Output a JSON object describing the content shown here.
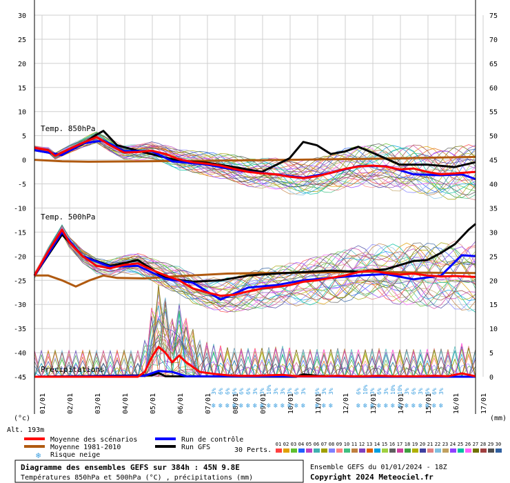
{
  "chart_data": {
    "type": "line",
    "y_left": {
      "min": -45,
      "max": 30,
      "ticks": [
        30,
        25,
        20,
        15,
        10,
        5,
        0,
        -5,
        -10,
        -15,
        -20,
        -25,
        -30,
        -35,
        -40,
        -45
      ],
      "unit_label": "(°c)"
    },
    "y_right": {
      "min": 0,
      "max": 75,
      "ticks": [
        75,
        70,
        65,
        60,
        55,
        50,
        45,
        40,
        35,
        30,
        25,
        20,
        15,
        10,
        5,
        0
      ],
      "unit_label": "(mm)"
    },
    "x_dates": [
      "01/01",
      "02/01",
      "03/01",
      "04/01",
      "05/01",
      "06/01",
      "07/01",
      "08/01",
      "09/01",
      "10/01",
      "11/01",
      "12/01",
      "13/01",
      "14/01",
      "15/01",
      "16/01",
      "17/01"
    ],
    "x_range_hours": [
      0,
      384
    ],
    "grid": true,
    "section_labels": {
      "t850": "Temp. 850hPa",
      "t500": "Temp. 500hPa",
      "precip": "Précipitations"
    },
    "altitude": "Alt. 193m",
    "series": [
      {
        "name": "Moyenne des scénarios",
        "color": "#ff0000",
        "t850": [
          [
            0,
            2.5
          ],
          [
            12,
            2
          ],
          [
            18,
            0.8
          ],
          [
            30,
            2.2
          ],
          [
            42,
            3.5
          ],
          [
            54,
            4.7
          ],
          [
            66,
            3
          ],
          [
            78,
            1.5
          ],
          [
            90,
            1.6
          ],
          [
            102,
            1.9
          ],
          [
            114,
            1.2
          ],
          [
            126,
            0.1
          ],
          [
            138,
            -0.5
          ],
          [
            150,
            -0.8
          ],
          [
            162,
            -1.2
          ],
          [
            174,
            -1.9
          ],
          [
            186,
            -2.5
          ],
          [
            198,
            -2.8
          ],
          [
            210,
            -3
          ],
          [
            222,
            -3.5
          ],
          [
            234,
            -3.8
          ],
          [
            246,
            -3.4
          ],
          [
            258,
            -2.7
          ],
          [
            270,
            -1.9
          ],
          [
            282,
            -1.4
          ],
          [
            294,
            -1.2
          ],
          [
            306,
            -1.4
          ],
          [
            318,
            -2
          ],
          [
            330,
            -1.8
          ],
          [
            342,
            -2.5
          ],
          [
            354,
            -3
          ],
          [
            366,
            -2.8
          ],
          [
            384,
            -2.5
          ]
        ],
        "t500": [
          [
            0,
            -24
          ],
          [
            12,
            -19
          ],
          [
            24,
            -14.5
          ],
          [
            30,
            -17
          ],
          [
            42,
            -20
          ],
          [
            54,
            -22
          ],
          [
            66,
            -22.5
          ],
          [
            78,
            -21.8
          ],
          [
            90,
            -21.5
          ],
          [
            102,
            -22.8
          ],
          [
            114,
            -24
          ],
          [
            126,
            -25
          ],
          [
            138,
            -26.7
          ],
          [
            150,
            -27.5
          ],
          [
            162,
            -28.2
          ],
          [
            174,
            -28
          ],
          [
            186,
            -27.3
          ],
          [
            198,
            -26.7
          ],
          [
            210,
            -26.4
          ],
          [
            222,
            -26
          ],
          [
            234,
            -25.3
          ],
          [
            246,
            -25
          ],
          [
            258,
            -24.5
          ],
          [
            270,
            -24
          ],
          [
            282,
            -23.3
          ],
          [
            294,
            -23
          ],
          [
            306,
            -23.5
          ],
          [
            318,
            -23.8
          ],
          [
            330,
            -23.6
          ],
          [
            342,
            -24
          ],
          [
            354,
            -24.2
          ],
          [
            366,
            -24.1
          ],
          [
            384,
            -24.3
          ]
        ],
        "precip_mm": [
          [
            0,
            0
          ],
          [
            90,
            0
          ],
          [
            96,
            1
          ],
          [
            102,
            4
          ],
          [
            108,
            6.2
          ],
          [
            114,
            5
          ],
          [
            120,
            3
          ],
          [
            126,
            4.4
          ],
          [
            132,
            3
          ],
          [
            138,
            2
          ],
          [
            144,
            1
          ],
          [
            156,
            0.6
          ],
          [
            168,
            0.3
          ],
          [
            180,
            0.2
          ],
          [
            192,
            0.2
          ],
          [
            204,
            0.3
          ],
          [
            216,
            0.4
          ],
          [
            228,
            0.1
          ],
          [
            240,
            0.1
          ],
          [
            252,
            0.1
          ],
          [
            264,
            0.2
          ],
          [
            276,
            0.1
          ],
          [
            288,
            0.1
          ],
          [
            300,
            0.2
          ],
          [
            312,
            0.1
          ],
          [
            324,
            0.1
          ],
          [
            336,
            0.1
          ],
          [
            348,
            0.2
          ],
          [
            360,
            0.1
          ],
          [
            372,
            0.7
          ],
          [
            384,
            0.1
          ]
        ]
      },
      {
        "name": "Moyenne 1981-2010",
        "color": "#b05a10",
        "t850": [
          [
            0,
            0
          ],
          [
            24,
            -0.3
          ],
          [
            48,
            -0.4
          ],
          [
            96,
            -0.3
          ],
          [
            192,
            -0.1
          ],
          [
            288,
            0.2
          ],
          [
            384,
            0.6
          ]
        ],
        "t500": [
          [
            0,
            -24
          ],
          [
            12,
            -24
          ],
          [
            24,
            -25
          ],
          [
            36,
            -26.3
          ],
          [
            48,
            -25
          ],
          [
            60,
            -24
          ],
          [
            72,
            -24.5
          ],
          [
            96,
            -24.6
          ],
          [
            120,
            -24.2
          ],
          [
            168,
            -23.6
          ],
          [
            192,
            -23.5
          ],
          [
            240,
            -23.4
          ],
          [
            288,
            -23.2
          ],
          [
            336,
            -23.4
          ],
          [
            384,
            -23.5
          ]
        ]
      },
      {
        "name": "Run de contrôle",
        "color": "#0000ff",
        "t850": [
          [
            0,
            2
          ],
          [
            24,
            1
          ],
          [
            42,
            3.4
          ],
          [
            60,
            4
          ],
          [
            78,
            1.8
          ],
          [
            102,
            1.8
          ],
          [
            120,
            -0.3
          ],
          [
            150,
            -1
          ],
          [
            180,
            -2.3
          ],
          [
            210,
            -3
          ],
          [
            234,
            -3.7
          ],
          [
            258,
            -2.7
          ],
          [
            282,
            -1.3
          ],
          [
            306,
            -1.3
          ],
          [
            330,
            -3
          ],
          [
            354,
            -3.2
          ],
          [
            372,
            -3
          ],
          [
            384,
            -4
          ]
        ],
        "t500": [
          [
            0,
            -24
          ],
          [
            24,
            -15
          ],
          [
            42,
            -20
          ],
          [
            66,
            -22.2
          ],
          [
            90,
            -22
          ],
          [
            114,
            -24.7
          ],
          [
            138,
            -25.5
          ],
          [
            162,
            -29
          ],
          [
            186,
            -26.5
          ],
          [
            210,
            -26
          ],
          [
            234,
            -25
          ],
          [
            258,
            -24.5
          ],
          [
            282,
            -24
          ],
          [
            306,
            -23.7
          ],
          [
            330,
            -24.8
          ],
          [
            354,
            -24
          ],
          [
            372,
            -19.8
          ],
          [
            384,
            -20
          ]
        ],
        "precip_mm": [
          [
            0,
            0
          ],
          [
            96,
            0.2
          ],
          [
            108,
            1.2
          ],
          [
            120,
            1
          ],
          [
            132,
            0.1
          ],
          [
            384,
            0
          ]
        ]
      },
      {
        "name": "Run GFS",
        "color": "#000000",
        "t850": [
          [
            0,
            2
          ],
          [
            24,
            1
          ],
          [
            42,
            3.3
          ],
          [
            54,
            5.2
          ],
          [
            60,
            6
          ],
          [
            72,
            3
          ],
          [
            96,
            1.5
          ],
          [
            126,
            -0.2
          ],
          [
            150,
            -0.6
          ],
          [
            174,
            -1.5
          ],
          [
            198,
            -2.5
          ],
          [
            222,
            0.3
          ],
          [
            234,
            3.7
          ],
          [
            246,
            3
          ],
          [
            258,
            1.2
          ],
          [
            270,
            1.7
          ],
          [
            282,
            2.7
          ],
          [
            294,
            1.5
          ],
          [
            318,
            -1
          ],
          [
            342,
            -1
          ],
          [
            366,
            -1.5
          ],
          [
            384,
            -0.5
          ]
        ],
        "t500": [
          [
            0,
            -24
          ],
          [
            24,
            -15.5
          ],
          [
            42,
            -20
          ],
          [
            66,
            -22
          ],
          [
            90,
            -20.8
          ],
          [
            114,
            -24.5
          ],
          [
            138,
            -25.3
          ],
          [
            162,
            -25
          ],
          [
            186,
            -24
          ],
          [
            210,
            -23.6
          ],
          [
            234,
            -23.3
          ],
          [
            258,
            -23
          ],
          [
            282,
            -23.2
          ],
          [
            306,
            -22.7
          ],
          [
            330,
            -21
          ],
          [
            342,
            -20.8
          ],
          [
            354,
            -19.3
          ],
          [
            366,
            -17.5
          ],
          [
            378,
            -14.5
          ],
          [
            384,
            -13.3
          ]
        ],
        "precip_mm": [
          [
            0,
            0
          ],
          [
            102,
            0.3
          ],
          [
            108,
            0.8
          ],
          [
            114,
            0.1
          ],
          [
            228,
            0
          ],
          [
            234,
            0.5
          ],
          [
            246,
            0.2
          ],
          [
            276,
            0
          ],
          [
            384,
            0
          ]
        ]
      },
      {
        "name": "Risque neige"
      },
      {
        "name": "30 Perts."
      }
    ],
    "snow_risk": {
      "color": "#3fa0e0",
      "markers": [
        {
          "hour": 156,
          "label": "3%"
        },
        {
          "hour": 162,
          "label": "6%"
        },
        {
          "hour": 168,
          "label": "6%"
        },
        {
          "hour": 174,
          "label": "6%"
        },
        {
          "hour": 180,
          "label": "6%"
        },
        {
          "hour": 186,
          "label": "6%"
        },
        {
          "hour": 192,
          "label": "3%"
        },
        {
          "hour": 198,
          "label": "3%"
        },
        {
          "hour": 204,
          "label": "10%"
        },
        {
          "hour": 210,
          "label": "3%"
        },
        {
          "hour": 216,
          "label": "3%"
        },
        {
          "hour": 222,
          "label": "3%"
        },
        {
          "hour": 228,
          "label": "6%"
        },
        {
          "hour": 234,
          "label": "3%"
        },
        {
          "hour": 246,
          "label": "6%"
        },
        {
          "hour": 252,
          "label": "3%"
        },
        {
          "hour": 258,
          "label": "3%"
        },
        {
          "hour": 282,
          "label": "6%"
        },
        {
          "hour": 288,
          "label": "10%"
        },
        {
          "hour": 294,
          "label": "3%"
        },
        {
          "hour": 300,
          "label": "6%"
        },
        {
          "hour": 306,
          "label": "3%"
        },
        {
          "hour": 312,
          "label": "10%"
        },
        {
          "hour": 318,
          "label": "10%"
        },
        {
          "hour": 324,
          "label": "3%"
        },
        {
          "hour": 330,
          "label": "6%"
        },
        {
          "hour": 336,
          "label": "3%"
        },
        {
          "hour": 342,
          "label": "6%"
        },
        {
          "hour": 348,
          "label": "6%"
        },
        {
          "hour": 354,
          "label": "3%"
        }
      ]
    },
    "perturbations": {
      "labels": [
        "01",
        "02",
        "03",
        "04",
        "05",
        "06",
        "07",
        "08",
        "09",
        "10",
        "11",
        "12",
        "13",
        "14",
        "15",
        "16",
        "17",
        "18",
        "19",
        "20",
        "21",
        "22",
        "23",
        "24",
        "25",
        "26",
        "27",
        "28",
        "29",
        "30"
      ],
      "colors": [
        "#ff4040",
        "#e0a000",
        "#60c030",
        "#2060ff",
        "#c040c0",
        "#40b0b0",
        "#a0a000",
        "#8080ff",
        "#ff8080",
        "#40c080",
        "#c08040",
        "#8040c0",
        "#e06000",
        "#00a0e0",
        "#a0d040",
        "#606060",
        "#d040a0",
        "#40a040",
        "#b0b000",
        "#4040a0",
        "#e08080",
        "#80c0e0",
        "#c0a060",
        "#9040ff",
        "#00c0a0",
        "#ff60ff",
        "#707000",
        "#a04040",
        "#505050",
        "#3060a0"
      ]
    },
    "legend": {
      "mean": "Moyenne des scénarios",
      "normal": "Moyenne 1981-2010",
      "snow": "Risque neige",
      "control": "Run de contrôle",
      "gfs": "Run GFS",
      "perts": "30 Perts."
    }
  },
  "footer": {
    "title": "Diagramme des ensembles GEFS sur 384h : 45N 9.8E",
    "subtitle": "Températures 850hPa et 500hPa (°C) , précipitations (mm)",
    "run_info": "Ensemble GEFS du 01/01/2024 - 18Z",
    "copyright": "Copyright 2024 Meteociel.fr"
  }
}
